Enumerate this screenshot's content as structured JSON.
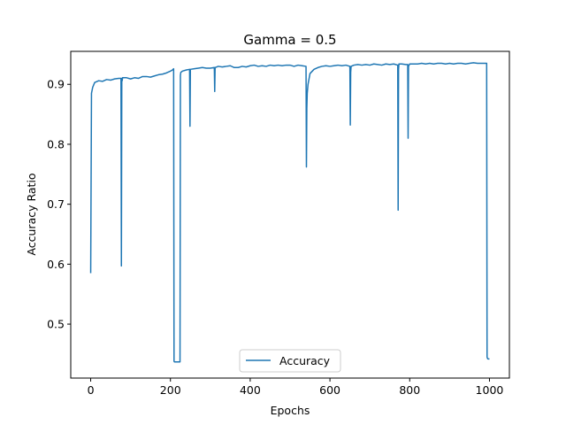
{
  "chart_data": {
    "type": "line",
    "title": "Gamma = 0.5",
    "xlabel": "Epochs",
    "ylabel": "Accuracy Ratio",
    "xlim": [
      -50,
      1050
    ],
    "ylim": [
      0.41,
      0.955
    ],
    "xticks": [
      0,
      200,
      400,
      600,
      800,
      1000
    ],
    "xtick_labels": [
      "0",
      "200",
      "400",
      "600",
      "800",
      "1000"
    ],
    "yticks": [
      0.5,
      0.6,
      0.7,
      0.8,
      0.9
    ],
    "ytick_labels": [
      "0.5",
      "0.6",
      "0.7",
      "0.8",
      "0.9"
    ],
    "grid": false,
    "legend_position": "lower-center",
    "series": [
      {
        "name": "Accuracy",
        "color": "#1f77b4",
        "x": [
          0,
          2,
          5,
          10,
          20,
          30,
          40,
          50,
          60,
          70,
          76,
          77,
          78,
          79,
          80,
          90,
          100,
          110,
          120,
          130,
          140,
          150,
          160,
          170,
          180,
          190,
          200,
          205,
          208,
          209,
          210,
          212,
          215,
          220,
          224,
          225,
          226,
          230,
          240,
          248,
          249,
          250,
          260,
          270,
          280,
          290,
          300,
          310,
          311,
          312,
          320,
          330,
          340,
          350,
          360,
          370,
          380,
          390,
          400,
          410,
          420,
          430,
          440,
          450,
          460,
          470,
          480,
          490,
          500,
          510,
          520,
          530,
          540,
          541,
          542,
          543,
          545,
          550,
          560,
          570,
          580,
          590,
          600,
          610,
          620,
          630,
          640,
          650,
          651,
          652,
          653,
          660,
          670,
          680,
          690,
          700,
          710,
          720,
          730,
          740,
          750,
          760,
          770,
          771,
          772,
          773,
          780,
          790,
          795,
          796,
          797,
          800,
          810,
          820,
          830,
          840,
          850,
          860,
          870,
          880,
          890,
          900,
          910,
          920,
          930,
          940,
          950,
          960,
          970,
          980,
          990,
          992,
          993,
          994,
          995,
          996,
          998,
          1000
        ],
        "y": [
          0.585,
          0.885,
          0.895,
          0.903,
          0.906,
          0.905,
          0.908,
          0.907,
          0.909,
          0.91,
          0.91,
          0.597,
          0.91,
          0.906,
          0.911,
          0.911,
          0.909,
          0.911,
          0.91,
          0.913,
          0.913,
          0.912,
          0.914,
          0.916,
          0.917,
          0.919,
          0.922,
          0.924,
          0.926,
          0.438,
          0.437,
          0.437,
          0.437,
          0.437,
          0.437,
          0.915,
          0.92,
          0.922,
          0.924,
          0.925,
          0.83,
          0.925,
          0.926,
          0.927,
          0.928,
          0.927,
          0.927,
          0.928,
          0.888,
          0.928,
          0.93,
          0.929,
          0.93,
          0.931,
          0.928,
          0.928,
          0.93,
          0.929,
          0.931,
          0.932,
          0.93,
          0.931,
          0.93,
          0.932,
          0.931,
          0.932,
          0.931,
          0.932,
          0.932,
          0.93,
          0.932,
          0.931,
          0.93,
          0.762,
          0.86,
          0.885,
          0.9,
          0.918,
          0.925,
          0.928,
          0.93,
          0.931,
          0.93,
          0.931,
          0.932,
          0.931,
          0.932,
          0.93,
          0.832,
          0.92,
          0.93,
          0.932,
          0.933,
          0.932,
          0.933,
          0.932,
          0.934,
          0.933,
          0.932,
          0.934,
          0.933,
          0.934,
          0.932,
          0.69,
          0.925,
          0.934,
          0.934,
          0.933,
          0.933,
          0.81,
          0.93,
          0.934,
          0.934,
          0.934,
          0.935,
          0.934,
          0.935,
          0.934,
          0.935,
          0.935,
          0.934,
          0.935,
          0.934,
          0.935,
          0.935,
          0.934,
          0.935,
          0.936,
          0.935,
          0.935,
          0.935,
          0.935,
          0.935,
          0.445,
          0.443,
          0.442,
          0.442,
          0.442
        ]
      }
    ]
  }
}
